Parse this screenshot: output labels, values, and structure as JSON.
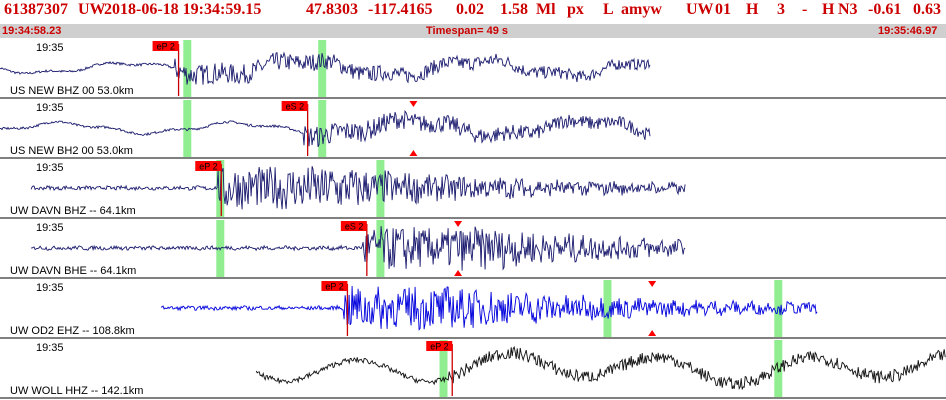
{
  "header": {
    "event_id": "61387307",
    "network": "UW",
    "datetime": "2018-06-18 19:34:59.15",
    "latitude": "47.8303",
    "longitude": "-117.4165",
    "depth": "0.02",
    "magnitude": "1.58",
    "mag_type": "Ml",
    "type_code": "px",
    "location_code": "L",
    "author": "amyw",
    "source": "UW",
    "version": "01",
    "field1": "H",
    "field2": "3",
    "field3": "-",
    "field4": "H",
    "field5": "N3",
    "field6": "-0.61",
    "field7": "0.63"
  },
  "subheader": {
    "start_time": "19:34:58.23",
    "timespan": "Timespan=  49 s",
    "end_time": "19:35:46.97"
  },
  "colors": {
    "background": "#ffffff",
    "header_text": "#cc0000",
    "subheader_bg": "#cfcfcf",
    "pick_flag": "#ff0000",
    "pick_line": "#cc0000",
    "window_band": "#90ee90",
    "divider": "#000000"
  },
  "chart_data": {
    "type": "line",
    "x_unit": "seconds after 19:34:58.23",
    "xlim": [
      0,
      48.74
    ],
    "traces": [
      {
        "label": "US NEW BHZ 00 53.0km",
        "time_label": "19:35",
        "color": "#1a1a6e",
        "data_span": [
          0,
          33.5
        ],
        "style": "lowfreq",
        "pick": {
          "label": "eP 2",
          "time": 9.2
        },
        "windows": [
          9.65,
          16.6
        ],
        "marker": null
      },
      {
        "label": "US NEW BH2 00 53.0km",
        "time_label": "19:35",
        "color": "#1a1a6e",
        "data_span": [
          0,
          33.5
        ],
        "style": "lowfreq",
        "pick": {
          "label": "eS 2",
          "time": 15.85
        },
        "windows": [
          9.65,
          16.6
        ],
        "marker": 21.3
      },
      {
        "label": "UW DAVN BHZ -- 64.1km",
        "time_label": "19:35",
        "color": "#1a1a6e",
        "data_span": [
          1.6,
          35.3
        ],
        "style": "highfreq",
        "pick": {
          "label": "eP 2",
          "time": 11.4
        },
        "windows": [
          11.35,
          19.6
        ],
        "marker": null
      },
      {
        "label": "UW DAVN BHE -- 64.1km",
        "time_label": "19:35",
        "color": "#1a1a6e",
        "data_span": [
          1.6,
          35.3
        ],
        "style": "highfreq",
        "pick": {
          "label": "eS 2",
          "time": 18.9
        },
        "windows": [
          11.35,
          19.6
        ],
        "marker": 23.6
      },
      {
        "label": "UW OD2 EHZ -- 108.8km",
        "time_label": "19:35",
        "color": "#0000dd",
        "data_span": [
          8.3,
          42.1
        ],
        "style": "highfreq",
        "pick": {
          "label": "eP 2",
          "time": 17.9
        },
        "windows": [
          31.3,
          40.1
        ],
        "marker": 33.6
      },
      {
        "label": "UW WOLL HHZ -- 142.1km",
        "time_label": "19:35",
        "color": "#111111",
        "data_span": [
          13.2,
          48.74
        ],
        "style": "lowfreq-dense",
        "pick": {
          "label": "eP 2",
          "time": 23.3
        },
        "windows": [
          22.85,
          40.1
        ],
        "marker": null
      }
    ]
  }
}
